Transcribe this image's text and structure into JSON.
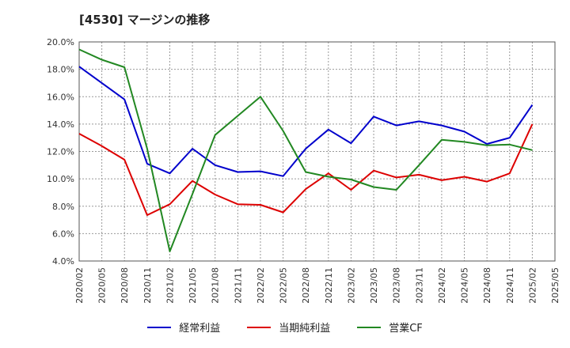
{
  "chart_data": {
    "type": "line",
    "title": "[4530]  マージンの推移",
    "xlabel": "",
    "ylabel": "",
    "ylim": [
      4.0,
      20.0
    ],
    "yticks": [
      "4.0%",
      "6.0%",
      "8.0%",
      "10.0%",
      "12.0%",
      "14.0%",
      "16.0%",
      "18.0%",
      "20.0%"
    ],
    "grid": true,
    "legend_position": "bottom",
    "categories": [
      "2020/02",
      "2020/05",
      "2020/08",
      "2020/11",
      "2021/02",
      "2021/05",
      "2021/08",
      "2021/11",
      "2022/02",
      "2022/05",
      "2022/08",
      "2022/11",
      "2023/02",
      "2023/05",
      "2023/08",
      "2023/11",
      "2024/02",
      "2024/05",
      "2024/08",
      "2024/11",
      "2025/02",
      "2025/05"
    ],
    "series": [
      {
        "name": "経常利益",
        "color": "#0000cc",
        "values": [
          18.2,
          17.0,
          15.8,
          11.1,
          10.4,
          12.2,
          11.0,
          10.5,
          10.55,
          10.2,
          12.2,
          13.6,
          12.6,
          14.55,
          13.9,
          14.2,
          13.9,
          13.45,
          12.55,
          13.0,
          15.4,
          null
        ]
      },
      {
        "name": "当期純利益",
        "color": "#dd0000",
        "values": [
          13.3,
          12.4,
          11.4,
          7.35,
          8.15,
          9.85,
          8.85,
          8.15,
          8.1,
          7.55,
          9.25,
          10.4,
          9.2,
          10.6,
          10.1,
          10.3,
          9.9,
          10.15,
          9.8,
          10.4,
          14.0,
          null
        ]
      },
      {
        "name": "営業CF",
        "color": "#228822",
        "values": [
          19.45,
          18.7,
          18.15,
          12.2,
          4.7,
          8.9,
          13.2,
          14.6,
          16.0,
          13.5,
          10.5,
          10.15,
          9.95,
          9.4,
          9.2,
          11.0,
          12.85,
          12.7,
          12.45,
          12.5,
          12.1,
          null
        ]
      }
    ]
  }
}
